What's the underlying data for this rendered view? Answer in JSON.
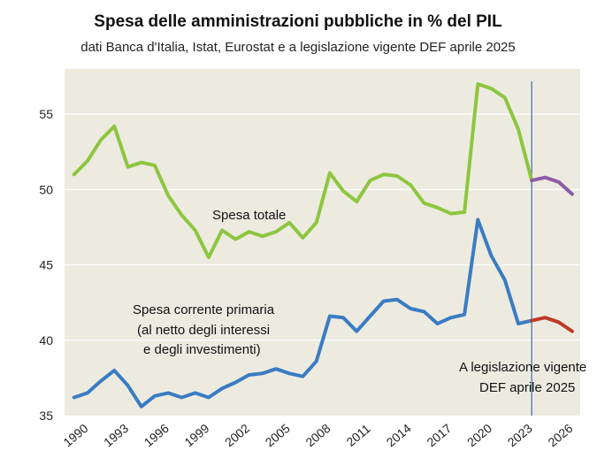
{
  "chart_data": {
    "type": "line",
    "title": "Spesa  delle amministrazioni  pubbliche  in % del PIL",
    "subtitle": "dati Banca d'Italia, Istat, Eurostat e a legislazione vigente  DEF aprile 2025",
    "xlabel": "",
    "ylabel": "",
    "xlim": [
      1990,
      2027
    ],
    "ylim": [
      35,
      58
    ],
    "x_ticks": [
      "1990",
      "1993",
      "1996",
      "1999",
      "2002",
      "2005",
      "2008",
      "2011",
      "2014",
      "2017",
      "2020",
      "2023",
      "2026"
    ],
    "y_ticks": [
      "35",
      "40",
      "45",
      "50",
      "55"
    ],
    "grid": "horizontal",
    "colors": {
      "plot_bg": "#edebe0",
      "grid": "#ffffff",
      "total": "#8dc63f",
      "total_forecast": "#8e5ba6",
      "current": "#3a7cc3",
      "current_forecast": "#c0392b",
      "vline": "#4a78b5"
    },
    "series": [
      {
        "name": "Spesa totale",
        "x": [
          1990,
          1991,
          1992,
          1993,
          1994,
          1995,
          1996,
          1997,
          1998,
          1999,
          2000,
          2001,
          2002,
          2003,
          2004,
          2005,
          2006,
          2007,
          2008,
          2009,
          2010,
          2011,
          2012,
          2013,
          2014,
          2015,
          2016,
          2017,
          2018,
          2019,
          2020,
          2021,
          2022,
          2023,
          2024
        ],
        "values": [
          51.0,
          51.9,
          53.3,
          54.2,
          51.5,
          51.8,
          51.6,
          49.6,
          48.3,
          47.3,
          45.5,
          47.3,
          46.7,
          47.2,
          46.9,
          47.2,
          47.8,
          46.8,
          47.8,
          51.1,
          49.9,
          49.2,
          50.6,
          51.0,
          50.9,
          50.3,
          49.1,
          48.8,
          48.4,
          48.5,
          57.0,
          56.7,
          56.1,
          54.0,
          50.6
        ]
      },
      {
        "name": "Spesa totale (legislazione vigente)",
        "x": [
          2024,
          2025,
          2026,
          2027
        ],
        "values": [
          50.6,
          50.8,
          50.5,
          49.7
        ]
      },
      {
        "name": "Spesa corrente primaria (al netto degli interessi e degli investimenti)",
        "x": [
          1990,
          1991,
          1992,
          1993,
          1994,
          1995,
          1996,
          1997,
          1998,
          1999,
          2000,
          2001,
          2002,
          2003,
          2004,
          2005,
          2006,
          2007,
          2008,
          2009,
          2010,
          2011,
          2012,
          2013,
          2014,
          2015,
          2016,
          2017,
          2018,
          2019,
          2020,
          2021,
          2022,
          2023,
          2024
        ],
        "values": [
          36.2,
          36.5,
          37.3,
          38.0,
          37.0,
          35.6,
          36.3,
          36.5,
          36.2,
          36.5,
          36.2,
          36.8,
          37.2,
          37.7,
          37.8,
          38.1,
          37.8,
          37.6,
          38.6,
          41.6,
          41.5,
          40.6,
          41.6,
          42.6,
          42.7,
          42.1,
          41.9,
          41.1,
          41.5,
          41.7,
          48.0,
          45.6,
          44.0,
          41.1,
          41.3
        ]
      },
      {
        "name": "Spesa corrente primaria (legislazione vigente)",
        "x": [
          2024,
          2025,
          2026,
          2027
        ],
        "values": [
          41.3,
          41.5,
          41.2,
          40.6
        ]
      }
    ],
    "annotations": {
      "total_label": "Spesa totale",
      "current_label_1": "Spesa corrente primaria",
      "current_label_2": "(al netto degli interessi",
      "current_label_3": "e degli investimenti)",
      "forecast_label_1": "A legislazione vigente",
      "forecast_label_2": "DEF aprile 2025",
      "forecast_start_year": 2024
    }
  }
}
